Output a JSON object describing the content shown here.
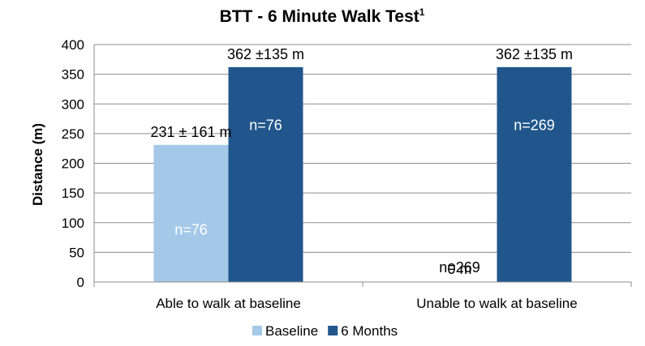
{
  "chart_data": {
    "type": "bar",
    "title": "BTT - 6 Minute Walk Test",
    "title_superscript": "1",
    "xlabel": "",
    "ylabel": "Distance (m)",
    "ylim": [
      0,
      400
    ],
    "yticks": [
      "0",
      "50",
      "100",
      "150",
      "200",
      "250",
      "300",
      "350",
      "400"
    ],
    "grid": true,
    "legend_position": "bottom",
    "categories": [
      "Able to walk at baseline",
      "Unable to walk at baseline"
    ],
    "series": [
      {
        "name": "Baseline",
        "color": "#a4c8e8",
        "values": [
          231,
          0
        ],
        "value_labels": [
          "231 ± 161 m",
          "0 m"
        ],
        "n_labels": [
          "n=76",
          "n=269"
        ],
        "n_label_color": [
          "#ffffff",
          "#000000"
        ]
      },
      {
        "name": "6 Months",
        "color": "#21568c",
        "values": [
          362,
          362
        ],
        "value_labels": [
          "362 ±135 m",
          "362 ±135 m"
        ],
        "n_labels": [
          "n=76",
          "n=269"
        ],
        "n_label_color": [
          "#ffffff",
          "#ffffff"
        ]
      }
    ]
  }
}
